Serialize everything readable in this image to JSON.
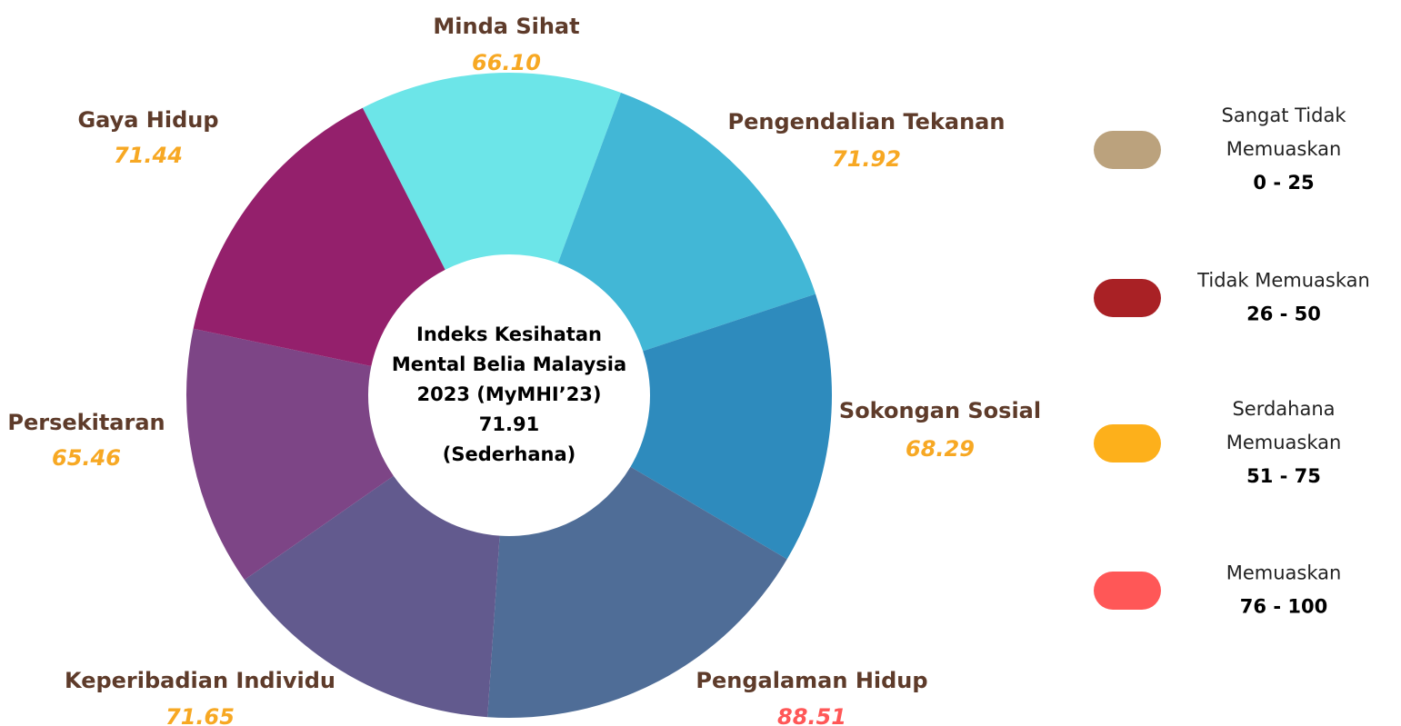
{
  "chart_data": {
    "type": "donut",
    "center_text": [
      "Indeks Kesihatan",
      "Mental Belia Malaysia",
      "2023 (MyMHI’23)",
      "71.91",
      "(Sederhana)"
    ],
    "categories": [
      "Minda Sihat",
      "Pengendalian Tekanan",
      "Sokongan Sosial",
      "Pengalaman Hidup",
      "Keperibadian Individu",
      "Persekitaran",
      "Gaya Hidup"
    ],
    "values": [
      66.1,
      71.92,
      68.29,
      88.51,
      71.65,
      65.46,
      71.44
    ],
    "value_labels": [
      "66.10",
      "71.92",
      "68.29",
      "88.51",
      "71.65",
      "65.46",
      "71.44"
    ],
    "colors": [
      "#6ce5e8",
      "#42b7d6",
      "#2e8bbd",
      "#4f6d97",
      "#625a8e",
      "#7d4586",
      "#94206c"
    ],
    "label_colors": [
      "#f7a823",
      "#f7a823",
      "#f7a823",
      "#ff5757",
      "#f7a823",
      "#f7a823",
      "#f7a823"
    ],
    "legend": [
      {
        "label_lines": [
          "Sangat Tidak",
          "Memuaskan"
        ],
        "range": "0 - 25",
        "color": "#bba27d"
      },
      {
        "label_lines": [
          "Tidak Memuaskan"
        ],
        "range": "26 - 50",
        "color": "#a92125"
      },
      {
        "label_lines": [
          "Serdahana",
          "Memuaskan"
        ],
        "range": "51 - 75",
        "color": "#fdb01b"
      },
      {
        "label_lines": [
          "Memuaskan"
        ],
        "range": "76 - 100",
        "color": "#ff5757"
      }
    ]
  }
}
